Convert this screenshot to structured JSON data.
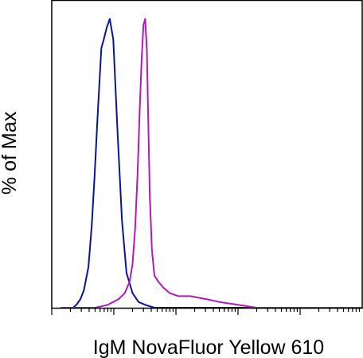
{
  "chart_data": {
    "type": "line",
    "title": "",
    "xlabel": "IgM NovaFluor Yellow 610",
    "ylabel": "% of Max",
    "x_scale": "log",
    "xlim": [
      1,
      100000
    ],
    "ylim": [
      0,
      100
    ],
    "grid": false,
    "legend": "none",
    "series": [
      {
        "color": "#0a1496",
        "x": [
          1.4,
          2.2,
          2.5,
          2.9,
          3.3,
          3.9,
          4.4,
          4.9,
          5.4,
          5.9,
          6.3,
          6.9,
          7.7,
          8.6,
          9.8,
          11.5,
          13.5,
          16,
          20,
          25,
          32,
          45,
          70,
          150,
          1000,
          100000
        ],
        "y": [
          0,
          0,
          1,
          3,
          6,
          14,
          28,
          45,
          63,
          78,
          89,
          92,
          96,
          99,
          92,
          60,
          30,
          12,
          5,
          2,
          1,
          0,
          0,
          0,
          0,
          0
        ]
      },
      {
        "color": "#b21ab8",
        "x": [
          1.4,
          5,
          8,
          12,
          15,
          18,
          20,
          22,
          24,
          26,
          28,
          30,
          32,
          34,
          36,
          38,
          41,
          45,
          52,
          62,
          80,
          110,
          170,
          300,
          500,
          1000,
          2000,
          10000,
          100000
        ],
        "y": [
          0,
          0,
          1,
          3,
          5,
          9,
          15,
          27,
          45,
          67,
          85,
          97,
          99,
          88,
          62,
          38,
          20,
          11,
          9,
          7,
          5,
          4,
          4,
          3,
          2,
          1,
          0,
          0,
          0
        ]
      }
    ]
  }
}
